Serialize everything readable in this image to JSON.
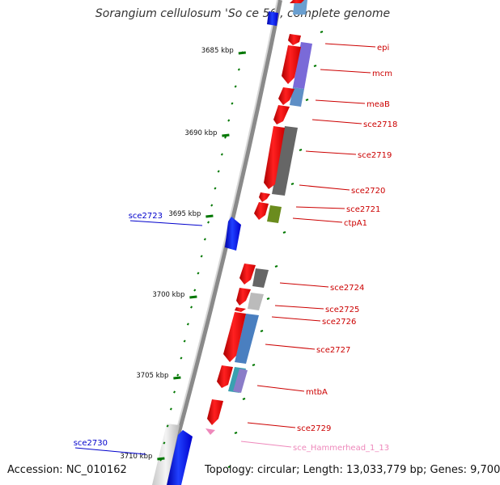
{
  "title": "Sorangium cellulosum 'So ce 56', complete genome",
  "accession": "Accession: NC_010162",
  "topology": "Topology: circular; Length: 13,033,779 bp; Genes: 9,700",
  "ticks": [
    {
      "label": "3685 kbp"
    },
    {
      "label": "3690 kbp"
    },
    {
      "label": "3695 kbp"
    },
    {
      "label": "3700 kbp"
    },
    {
      "label": "3705 kbp"
    },
    {
      "label": "3710 kbp"
    }
  ],
  "gene_labels_right": [
    {
      "label": "epi",
      "color": "#cc0000"
    },
    {
      "label": "mcm",
      "color": "#cc0000"
    },
    {
      "label": "meaB",
      "color": "#cc0000"
    },
    {
      "label": "sce2718",
      "color": "#cc0000"
    },
    {
      "label": "sce2719",
      "color": "#cc0000"
    },
    {
      "label": "sce2720",
      "color": "#cc0000"
    },
    {
      "label": "sce2721",
      "color": "#cc0000"
    },
    {
      "label": "ctpA1",
      "color": "#cc0000"
    },
    {
      "label": "sce2724",
      "color": "#cc0000"
    },
    {
      "label": "sce2725",
      "color": "#cc0000"
    },
    {
      "label": "sce2726",
      "color": "#cc0000"
    },
    {
      "label": "sce2727",
      "color": "#cc0000"
    },
    {
      "label": "mtbA",
      "color": "#cc0000"
    },
    {
      "label": "sce2729",
      "color": "#cc0000"
    },
    {
      "label": "sce_Hammerhead_1_13",
      "color": "#ee88bb"
    }
  ],
  "gene_labels_left": [
    {
      "label": "sce2723",
      "color": "#0000cc"
    },
    {
      "label": "sce2730",
      "color": "#0000cc"
    }
  ],
  "colors": {
    "forward_gene": "#ee0000",
    "reverse_gene": "#0000ee",
    "backbone": "#999999",
    "tick": "#007700",
    "rna": "#ee88bb"
  }
}
